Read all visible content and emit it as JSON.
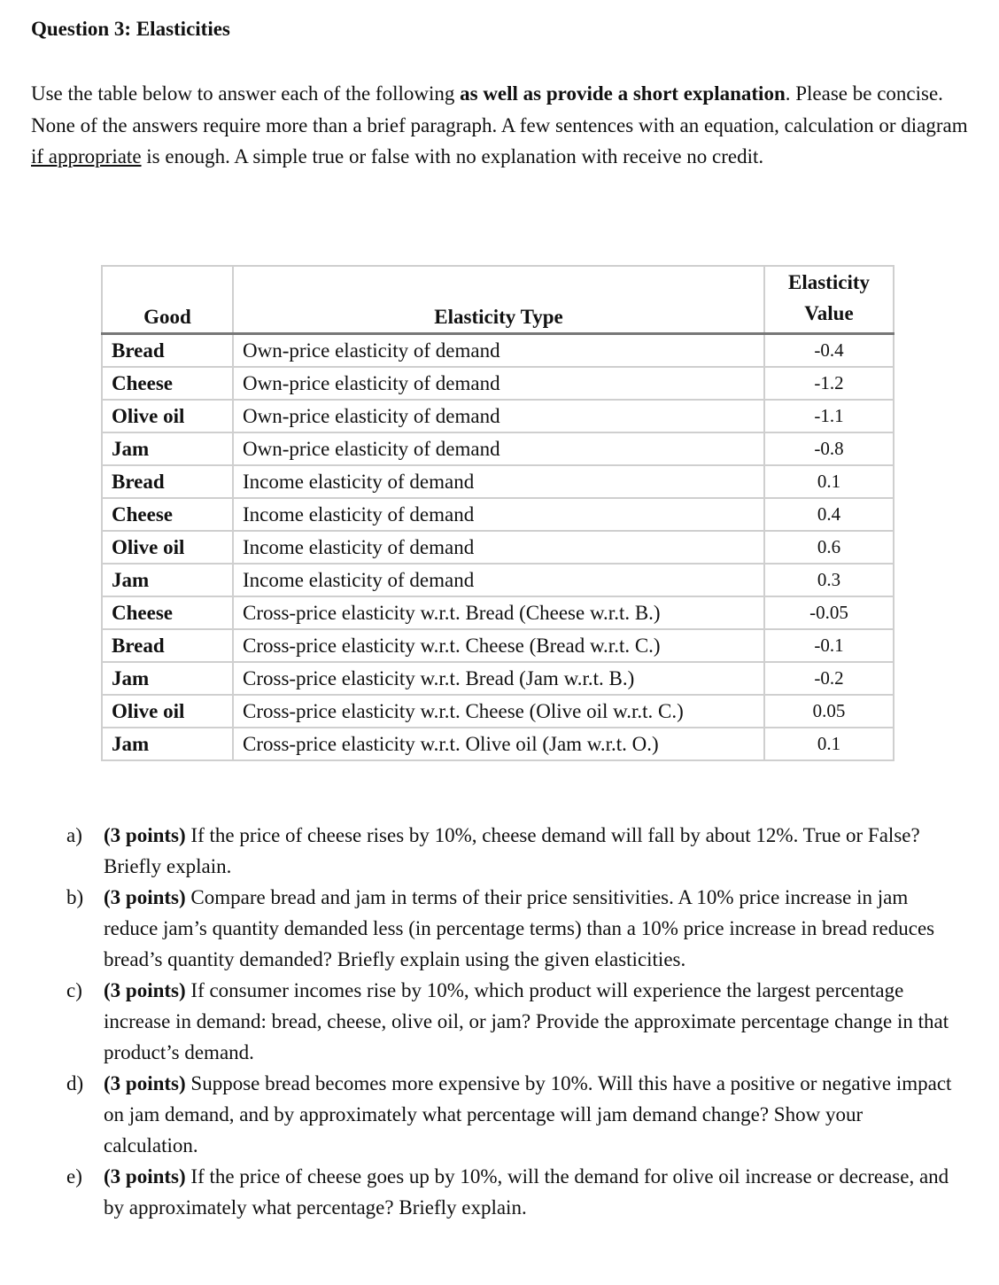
{
  "title": "Question 3: Elasticities",
  "intro": {
    "part1": "Use the table below to answer each of the following ",
    "bold": "as well as provide a short explanation",
    "part2": ". Please be concise. None of the answers require more than a brief paragraph. A few sentences with an equation, calculation or diagram ",
    "underlined": "if appropriate",
    "part3": " is enough. A simple true or false with no explanation with receive no credit."
  },
  "table": {
    "headers": [
      "Good",
      "Elasticity Type",
      "Elasticity Value"
    ],
    "rows": [
      {
        "good": "Bread",
        "type": "Own-price elasticity of demand",
        "value": "-0.4"
      },
      {
        "good": "Cheese",
        "type": "Own-price elasticity of demand",
        "value": "-1.2"
      },
      {
        "good": "Olive oil",
        "type": "Own-price elasticity of demand",
        "value": "-1.1"
      },
      {
        "good": "Jam",
        "type": "Own-price elasticity of demand",
        "value": "-0.8"
      },
      {
        "good": "Bread",
        "type": "Income elasticity of demand",
        "value": "0.1"
      },
      {
        "good": "Cheese",
        "type": "Income elasticity of demand",
        "value": "0.4"
      },
      {
        "good": "Olive oil",
        "type": "Income elasticity of demand",
        "value": "0.6"
      },
      {
        "good": "Jam",
        "type": "Income elasticity of demand",
        "value": "0.3"
      },
      {
        "good": "Cheese",
        "type": "Cross-price elasticity w.r.t. Bread (Cheese w.r.t. B.)",
        "value": "-0.05"
      },
      {
        "good": "Bread",
        "type": "Cross-price elasticity w.r.t. Cheese (Bread w.r.t. C.)",
        "value": "-0.1"
      },
      {
        "good": "Jam",
        "type": "Cross-price elasticity w.r.t. Bread (Jam w.r.t. B.)",
        "value": "-0.2"
      },
      {
        "good": "Olive oil",
        "type": "Cross-price elasticity w.r.t. Cheese (Olive oil w.r.t. C.)",
        "value": "0.05"
      },
      {
        "good": "Jam",
        "type": "Cross-price elasticity w.r.t. Olive oil (Jam w.r.t. O.)",
        "value": "0.1"
      }
    ]
  },
  "questions": [
    {
      "marker": "a)",
      "points": "(3 points)",
      "text": " If the price of cheese rises by 10%, cheese demand will fall by about 12%. True or False? Briefly explain."
    },
    {
      "marker": "b)",
      "points": "(3 points)",
      "text": " Compare bread and jam in terms of their price sensitivities. A 10% price increase in jam reduce jam’s quantity demanded less (in percentage terms) than a 10% price increase in bread reduces bread’s quantity demanded? Briefly explain using the given elasticities."
    },
    {
      "marker": "c)",
      "points": "(3 points)",
      "text": " If consumer incomes rise by 10%, which product will experience the largest percentage increase in demand: bread, cheese, olive oil, or jam? Provide the approximate percentage change in that product’s demand."
    },
    {
      "marker": "d)",
      "points": "(3 points)",
      "text": " Suppose bread becomes more expensive by 10%. Will this have a positive or negative impact on jam demand, and by approximately what percentage will jam demand change? Show your calculation."
    },
    {
      "marker": "e)",
      "points": "(3 points)",
      "text": " If the price of cheese goes up by 10%, will the demand for olive oil increase or decrease, and by approximately what percentage? Briefly explain."
    }
  ]
}
